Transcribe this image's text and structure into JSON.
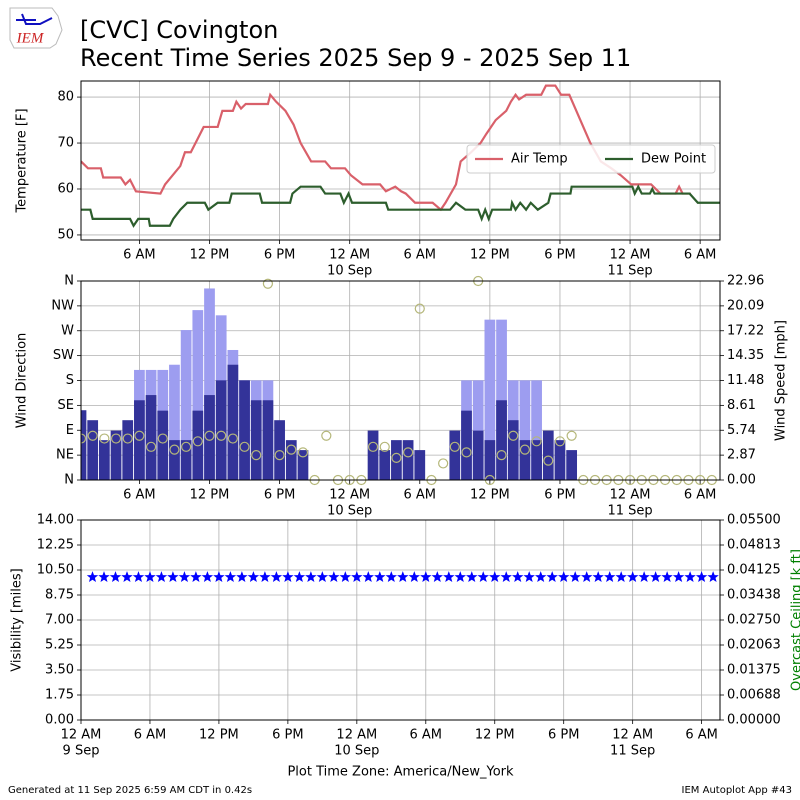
{
  "header": {
    "logo": "IEM",
    "title": "[CVC] Covington",
    "subtitle": "Recent Time Series 2025 Sep 9 - 2025 Sep 11"
  },
  "footer": {
    "left": "Generated at 11 Sep 2025 6:59 AM CDT in 0.42s",
    "right": "IEM Autoplot App #43"
  },
  "chart_data": [
    {
      "type": "line",
      "ylabel": "Temperature [F]",
      "grid": true,
      "legend": "upper right",
      "xlim": [
        1.0,
        55.7
      ],
      "ylim": [
        48.9,
        83.5
      ],
      "yticks": [
        50,
        60,
        70,
        80
      ],
      "xticks": [
        {
          "value": 6,
          "label": "6 AM"
        },
        {
          "value": 12,
          "label": "12 PM"
        },
        {
          "value": 18,
          "label": "6 PM"
        },
        {
          "value": 24,
          "label": "12 AM",
          "date": "10 Sep"
        },
        {
          "value": 30,
          "label": "6 AM"
        },
        {
          "value": 36,
          "label": "12 PM"
        },
        {
          "value": 42,
          "label": "6 PM"
        },
        {
          "value": 48,
          "label": "12 AM",
          "date": "11 Sep"
        },
        {
          "value": 54,
          "label": "6 AM"
        }
      ],
      "series": [
        {
          "name": "Air Temp",
          "color": "#d9606a",
          "x": [
            1.0,
            1.6,
            2.7,
            2.9,
            4.4,
            4.8,
            5.2,
            5.7,
            7.8,
            8.2,
            9.5,
            9.9,
            10.4,
            11.0,
            11.5,
            12.7,
            13.1,
            14.0,
            14.3,
            14.7,
            15.1,
            17.0,
            17.2,
            17.7,
            18.5,
            19.2,
            19.8,
            20.7,
            21.9,
            22.4,
            23.6,
            24.1,
            25.1,
            26.6,
            27.1,
            27.9,
            28.4,
            28.8,
            29.6,
            31.1,
            31.8,
            32.2,
            33.1,
            33.5,
            34.4,
            35.2,
            35.7,
            36.5,
            37.4,
            37.8,
            38.2,
            38.5,
            39.1,
            40.4,
            40.8,
            41.6,
            42.1,
            42.8,
            43.4,
            44.6,
            45.5,
            46.4,
            47.2,
            48.1,
            49.8,
            50.6,
            51.9,
            52.2,
            52.5,
            53.2
          ],
          "values": [
            66,
            64.5,
            64.5,
            62.5,
            62.5,
            61,
            62,
            59.5,
            59,
            61,
            65,
            68,
            68,
            71,
            73.5,
            73.5,
            77,
            77,
            79,
            77.5,
            78.5,
            78.5,
            80.5,
            79,
            77,
            74,
            70,
            66,
            66,
            64.5,
            64.5,
            63,
            61,
            61,
            59.5,
            60.5,
            59.5,
            59,
            57,
            57,
            55.5,
            57,
            61,
            66,
            68,
            70,
            72,
            75,
            77,
            79,
            80.5,
            79.5,
            80.5,
            80.5,
            82.5,
            82.5,
            80.5,
            80.5,
            77,
            70,
            66,
            64.5,
            63,
            61,
            61,
            59,
            59,
            60.5,
            59,
            59
          ]
        },
        {
          "name": "Dew Point",
          "color": "#2d5e2d",
          "x": [
            1.0,
            1.8,
            2.0,
            5.2,
            5.5,
            5.9,
            6.8,
            6.9,
            8.6,
            8.9,
            9.5,
            10.1,
            11.6,
            11.9,
            12.7,
            13.7,
            13.9,
            16.3,
            16.5,
            18.9,
            19.1,
            19.8,
            21.5,
            21.9,
            23.2,
            23.5,
            23.9,
            24.2,
            27.1,
            27.3,
            32.6,
            33.1,
            33.9,
            35.0,
            35.3,
            35.6,
            35.9,
            36.2,
            37.8,
            37.9,
            38.2,
            38.6,
            39.1,
            39.5,
            40.1,
            41.0,
            41.2,
            42.9,
            43.0,
            48.2,
            48.4,
            48.7,
            49.0,
            49.7,
            49.9,
            50.1,
            53.1,
            53.8,
            55.7
          ],
          "values": [
            55.5,
            55.5,
            53.5,
            53.5,
            52,
            53.5,
            53.5,
            52,
            52,
            53.5,
            55.5,
            57,
            57,
            55.5,
            57,
            57,
            59,
            59,
            57,
            57,
            59,
            60.5,
            60.5,
            59,
            59,
            57,
            59,
            57,
            57,
            55.5,
            55.5,
            57,
            55.5,
            55.5,
            53.5,
            55.5,
            53.5,
            55.5,
            55.5,
            57,
            55.5,
            57,
            55.5,
            57,
            55.5,
            57,
            59,
            59,
            60.5,
            60.5,
            59,
            60.5,
            59,
            59,
            60,
            59,
            59,
            57,
            57
          ]
        }
      ]
    },
    {
      "type": "bar",
      "ylabel": "Wind Direction",
      "y2label": "Wind Speed [mph]",
      "grid": true,
      "xlim": [
        1.0,
        55.7
      ],
      "ylim": [
        0,
        360
      ],
      "y2lim": [
        0,
        22.96
      ],
      "yticks": [
        {
          "value": 0,
          "label": "N"
        },
        {
          "value": 45,
          "label": "NE"
        },
        {
          "value": 90,
          "label": "E"
        },
        {
          "value": 135,
          "label": "SE"
        },
        {
          "value": 180,
          "label": "S"
        },
        {
          "value": 225,
          "label": "SW"
        },
        {
          "value": 270,
          "label": "W"
        },
        {
          "value": 315,
          "label": "NW"
        },
        {
          "value": 360,
          "label": "N"
        }
      ],
      "y2ticks": [
        {
          "value": 0,
          "label": "0.00"
        },
        2.87,
        5.74,
        8.61,
        11.48,
        14.35,
        17.22,
        20.09,
        22.96
      ],
      "xticks": [
        {
          "value": 6,
          "label": "6 AM"
        },
        {
          "value": 12,
          "label": "12 PM"
        },
        {
          "value": 18,
          "label": "6 PM"
        },
        {
          "value": 24,
          "label": "12 AM",
          "date": "10 Sep"
        },
        {
          "value": 30,
          "label": "6 AM"
        },
        {
          "value": 36,
          "label": "12 PM"
        },
        {
          "value": 42,
          "label": "6 PM"
        },
        {
          "value": 48,
          "label": "12 AM",
          "date": "11 Sep"
        },
        {
          "value": 54,
          "label": "6 AM"
        }
      ],
      "series": [
        {
          "type": "bar",
          "axis": "y2",
          "color": "#9d9df0",
          "x": [
            1,
            2,
            3,
            4,
            5,
            6,
            7,
            8,
            9,
            10,
            11,
            12,
            13,
            14,
            15,
            16,
            17,
            18,
            19,
            20,
            21,
            22,
            23,
            24,
            25,
            26,
            27,
            28,
            29,
            30,
            31,
            32,
            33,
            34,
            35,
            36,
            37,
            38,
            39,
            40,
            41,
            42,
            43,
            44,
            45,
            46,
            47,
            48,
            49,
            50,
            51,
            52,
            53,
            54,
            55
          ],
          "values": [
            null,
            null,
            null,
            null,
            null,
            12.7,
            12.7,
            12.7,
            13.3,
            17.3,
            19.6,
            22.1,
            19.0,
            15.0,
            11.5,
            11.5,
            11.5,
            null,
            null,
            null,
            null,
            null,
            null,
            null,
            null,
            null,
            null,
            null,
            null,
            null,
            null,
            null,
            null,
            11.5,
            11.5,
            18.5,
            18.5,
            11.5,
            11.5,
            11.5,
            null,
            null,
            null,
            null,
            null,
            null,
            null,
            null,
            null,
            null,
            null,
            null,
            null,
            null,
            null
          ]
        },
        {
          "type": "bar",
          "axis": "y2",
          "color": "#333399",
          "x": [
            1,
            2,
            3,
            4,
            5,
            6,
            7,
            8,
            9,
            10,
            11,
            12,
            13,
            14,
            15,
            16,
            17,
            18,
            19,
            20,
            21,
            22,
            23,
            24,
            25,
            26,
            27,
            28,
            29,
            30,
            31,
            32,
            33,
            34,
            35,
            36,
            37,
            38,
            39,
            40,
            41,
            42,
            43,
            44,
            45,
            46,
            47,
            48,
            49,
            50,
            51,
            52,
            53,
            54,
            55
          ],
          "values": [
            8.05,
            6.9,
            4.6,
            5.7,
            6.9,
            9.2,
            9.8,
            8.0,
            4.6,
            4.6,
            8.0,
            9.8,
            11.5,
            13.3,
            11.5,
            9.2,
            9.2,
            6.9,
            4.6,
            3.45,
            0,
            0,
            0,
            0,
            0,
            5.7,
            3.45,
            4.6,
            4.6,
            3.45,
            0,
            0,
            5.7,
            8.0,
            5.7,
            4.6,
            9.2,
            6.9,
            4.6,
            4.6,
            5.7,
            4.6,
            3.45,
            0,
            0,
            0,
            0,
            0,
            0,
            0,
            0,
            0,
            0,
            0,
            0
          ]
        },
        {
          "type": "scatter",
          "axis": "y",
          "color": "#b5b77a",
          "marker": "circle",
          "x": [
            1,
            2,
            3,
            4,
            5,
            6,
            7,
            8,
            9,
            10,
            11,
            12,
            13,
            14,
            15,
            16,
            17,
            18,
            19,
            20,
            21,
            22,
            23,
            24,
            25,
            26,
            27,
            28,
            29,
            30,
            31,
            32,
            33,
            34,
            35,
            36,
            37,
            38,
            39,
            40,
            41,
            42,
            43,
            44,
            45,
            46,
            47,
            48,
            49,
            50,
            51,
            52,
            53,
            54,
            55
          ],
          "values": [
            75,
            80,
            75,
            75,
            75,
            80,
            60,
            75,
            55,
            60,
            70,
            80,
            80,
            75,
            60,
            45,
            355,
            45,
            55,
            50,
            0,
            80,
            0,
            0,
            0,
            60,
            60,
            40,
            50,
            310,
            0,
            30,
            60,
            50,
            360,
            0,
            45,
            80,
            55,
            70,
            35,
            70,
            80,
            0,
            0,
            0,
            0,
            0,
            0,
            0,
            0,
            0,
            0,
            0,
            0
          ]
        }
      ]
    },
    {
      "type": "scatter",
      "ylabel": "Visibility [miles]",
      "y2label": "Overcast Ceiling [k ft]",
      "y2label_color": "#008000",
      "grid": true,
      "xlabel": "Plot Time Zone: America/New_York",
      "xlim": [
        0,
        55.6
      ],
      "ylim": [
        0,
        14
      ],
      "y2lim": [
        0,
        0.055
      ],
      "yticks": [
        {
          "value": 0,
          "label": "0.00"
        },
        1.75,
        {
          "value": 3.5,
          "label": "3.50"
        },
        5.25,
        {
          "value": 7,
          "label": "7.00"
        },
        8.75,
        {
          "value": 10.5,
          "label": "10.50"
        },
        12.25,
        {
          "value": 14,
          "label": "14.00"
        }
      ],
      "y2ticks": [
        {
          "value": 0,
          "label": "0.00000"
        },
        {
          "value": 0.006875,
          "label": "0.00688"
        },
        0.01375,
        {
          "value": 0.020625,
          "label": "0.02063"
        },
        {
          "value": 0.0275,
          "label": "0.02750"
        },
        {
          "value": 0.034375,
          "label": "0.03438"
        },
        0.04125,
        {
          "value": 0.048125,
          "label": "0.04813"
        },
        {
          "value": 0.055,
          "label": "0.05500"
        }
      ],
      "xticks": [
        {
          "value": 0,
          "label": "12 AM",
          "date": "9 Sep"
        },
        {
          "value": 6,
          "label": "6 AM"
        },
        {
          "value": 12,
          "label": "12 PM"
        },
        {
          "value": 18,
          "label": "6 PM"
        },
        {
          "value": 24,
          "label": "12 AM",
          "date": "10 Sep"
        },
        {
          "value": 30,
          "label": "6 AM"
        },
        {
          "value": 36,
          "label": "12 PM"
        },
        {
          "value": 42,
          "label": "6 PM"
        },
        {
          "value": 48,
          "label": "12 AM",
          "date": "11 Sep"
        },
        {
          "value": 54,
          "label": "6 AM"
        }
      ],
      "series": [
        {
          "color": "#0000ff",
          "marker": "star",
          "x": [
            1,
            2,
            3,
            4,
            5,
            6,
            7,
            8,
            9,
            10,
            11,
            12,
            13,
            14,
            15,
            16,
            17,
            18,
            19,
            20,
            21,
            22,
            23,
            24,
            25,
            26,
            27,
            28,
            29,
            30,
            31,
            32,
            33,
            34,
            35,
            36,
            37,
            38,
            39,
            40,
            41,
            42,
            43,
            44,
            45,
            46,
            47,
            48,
            49,
            50,
            51,
            52,
            53,
            54,
            55
          ],
          "values": [
            10,
            10,
            10,
            10,
            10,
            10,
            10,
            10,
            10,
            10,
            10,
            10,
            10,
            10,
            10,
            10,
            10,
            10,
            10,
            10,
            10,
            10,
            10,
            10,
            10,
            10,
            10,
            10,
            10,
            10,
            10,
            10,
            10,
            10,
            10,
            10,
            10,
            10,
            10,
            10,
            10,
            10,
            10,
            10,
            10,
            10,
            10,
            10,
            10,
            10,
            10,
            10,
            10,
            10,
            10
          ]
        }
      ]
    }
  ]
}
